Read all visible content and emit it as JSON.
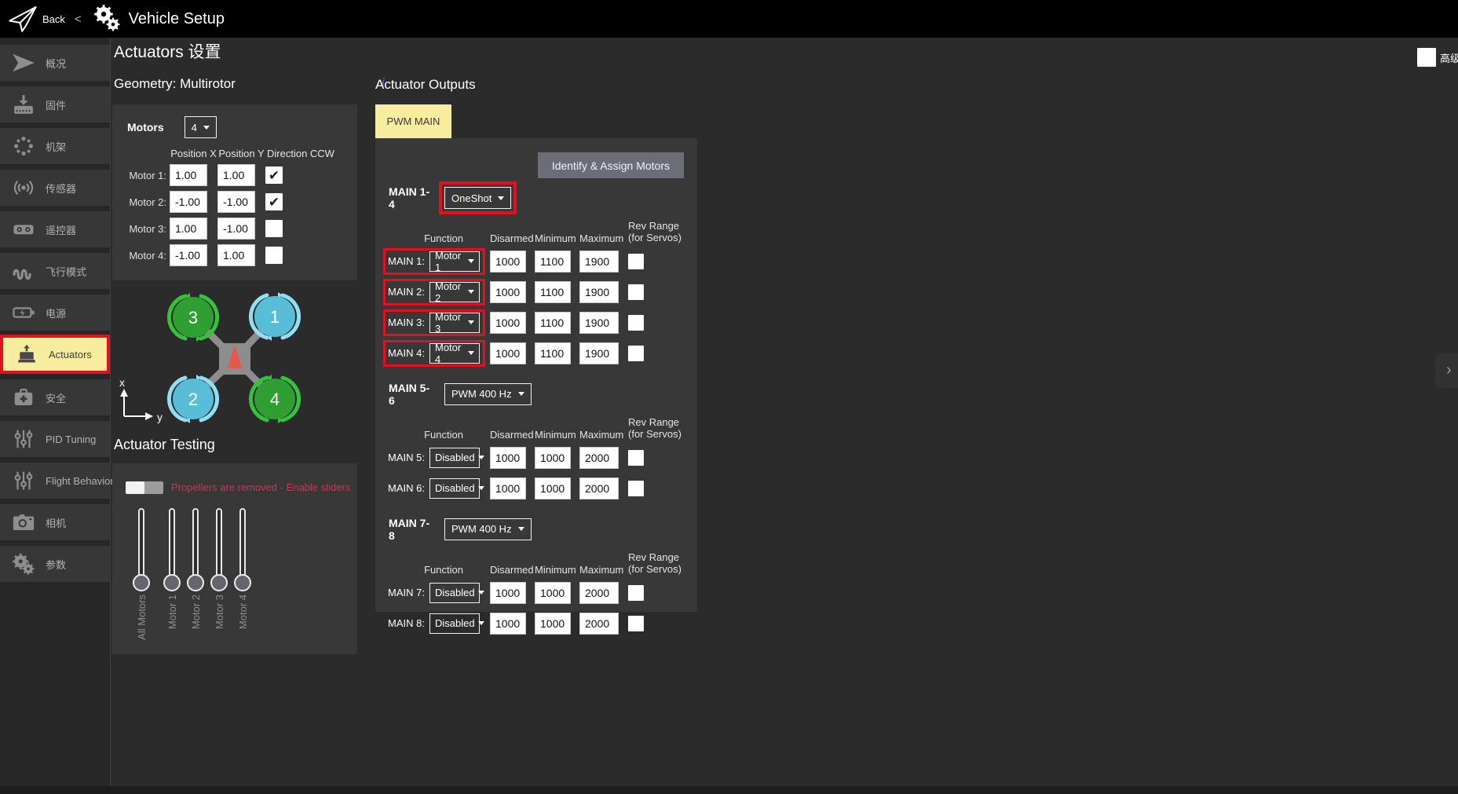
{
  "topbar": {
    "back_label": "Back",
    "separator": "<",
    "title": "Vehicle Setup"
  },
  "advanced": {
    "label": "高级",
    "checked": false
  },
  "sidebar": {
    "items": [
      {
        "id": "summary",
        "icon": "plane-icon",
        "label": "概况"
      },
      {
        "id": "firmware",
        "icon": "firmware-icon",
        "label": "固件"
      },
      {
        "id": "airframe",
        "icon": "airframe-icon",
        "label": "机架"
      },
      {
        "id": "sensors",
        "icon": "sensors-icon",
        "label": "传感器"
      },
      {
        "id": "radio",
        "icon": "radio-icon",
        "label": "遥控器"
      },
      {
        "id": "flight-modes",
        "icon": "flight-modes-icon",
        "label": "飞行模式"
      },
      {
        "id": "power",
        "icon": "power-icon",
        "label": "电源"
      },
      {
        "id": "actuators",
        "icon": "actuator-icon",
        "label": "Actuators",
        "active": true
      },
      {
        "id": "safety",
        "icon": "safety-icon",
        "label": "安全"
      },
      {
        "id": "pid-tuning",
        "icon": "tuning-icon",
        "label": "PID Tuning"
      },
      {
        "id": "flight-behavior",
        "icon": "tuning-icon",
        "label": "Flight Behavior"
      },
      {
        "id": "camera",
        "icon": "camera-icon",
        "label": "相机"
      },
      {
        "id": "parameters",
        "icon": "gears-icon",
        "label": "参数"
      }
    ]
  },
  "content": {
    "title": "Actuators 设置",
    "geometry_heading": "Geometry: Multirotor",
    "info_glyph": "i",
    "motors_panel": {
      "motors_label": "Motors",
      "motor_count": "4",
      "columns": [
        "Position X",
        "Position Y",
        "Direction CCW"
      ],
      "rows": [
        {
          "label": "Motor 1:",
          "x": "1.00",
          "y": "1.00",
          "ccw": true
        },
        {
          "label": "Motor 2:",
          "x": "-1.00",
          "y": "-1.00",
          "ccw": true
        },
        {
          "label": "Motor 3:",
          "x": "1.00",
          "y": "-1.00",
          "ccw": false
        },
        {
          "label": "Motor 4:",
          "x": "-1.00",
          "y": "1.00",
          "ccw": false
        }
      ]
    },
    "diagram": {
      "motors": [
        {
          "num": "3",
          "color": "green",
          "pos": "tl"
        },
        {
          "num": "1",
          "color": "blue",
          "pos": "tr"
        },
        {
          "num": "2",
          "color": "blue",
          "pos": "bl"
        },
        {
          "num": "4",
          "color": "green",
          "pos": "br"
        }
      ],
      "axis_x": "x",
      "axis_y": "y"
    },
    "testing": {
      "heading": "Actuator Testing",
      "warning": "Propellers are removed - Enable sliders",
      "toggle_on": false,
      "sliders": [
        "All Motors",
        "Motor 1",
        "Motor 2",
        "Motor 3",
        "Motor 4"
      ]
    }
  },
  "outputs": {
    "heading": "Actuator Outputs",
    "tab_label": "PWM MAIN",
    "identify_button": "Identify & Assign Motors",
    "column_headers": {
      "function": "Function",
      "disarmed": "Disarmed",
      "minimum": "Minimum",
      "maximum": "Maximum",
      "rev_line1": "Rev Range",
      "rev_line2": "(for Servos)"
    },
    "groups": [
      {
        "name": "MAIN 1-4",
        "mode": "OneShot",
        "mode_highlighted": true,
        "rows": [
          {
            "label": "MAIN 1:",
            "function": "Motor 1",
            "disarmed": "1000",
            "minimum": "1100",
            "maximum": "1900",
            "rev": false,
            "highlighted": true
          },
          {
            "label": "MAIN 2:",
            "function": "Motor 2",
            "disarmed": "1000",
            "minimum": "1100",
            "maximum": "1900",
            "rev": false,
            "highlighted": true
          },
          {
            "label": "MAIN 3:",
            "function": "Motor 3",
            "disarmed": "1000",
            "minimum": "1100",
            "maximum": "1900",
            "rev": false,
            "highlighted": true
          },
          {
            "label": "MAIN 4:",
            "function": "Motor 4",
            "disarmed": "1000",
            "minimum": "1100",
            "maximum": "1900",
            "rev": false,
            "highlighted": true
          }
        ]
      },
      {
        "name": "MAIN 5-6",
        "mode": "PWM 400 Hz",
        "mode_highlighted": false,
        "rows": [
          {
            "label": "MAIN 5:",
            "function": "Disabled",
            "disarmed": "1000",
            "minimum": "1000",
            "maximum": "2000",
            "rev": false,
            "highlighted": false
          },
          {
            "label": "MAIN 6:",
            "function": "Disabled",
            "disarmed": "1000",
            "minimum": "1000",
            "maximum": "2000",
            "rev": false,
            "highlighted": false
          }
        ]
      },
      {
        "name": "MAIN 7-8",
        "mode": "PWM 400 Hz",
        "mode_highlighted": false,
        "rows": [
          {
            "label": "MAIN 7:",
            "function": "Disabled",
            "disarmed": "1000",
            "minimum": "1000",
            "maximum": "2000",
            "rev": false,
            "highlighted": false
          },
          {
            "label": "MAIN 8:",
            "function": "Disabled",
            "disarmed": "1000",
            "minimum": "1000",
            "maximum": "2000",
            "rev": false,
            "highlighted": false
          }
        ]
      }
    ]
  },
  "colors": {
    "accent_yellow": "#f8ec9f",
    "highlight_red": "#e5101e",
    "warning_red": "#c13a52",
    "motor_green": "#2f9e33",
    "motor_blue": "#58bdd6",
    "arrow_green": "#35c33c",
    "arrow_blue": "#92def2",
    "triangle_red": "#e8564c",
    "arm_gray": "#8d8d8d"
  }
}
